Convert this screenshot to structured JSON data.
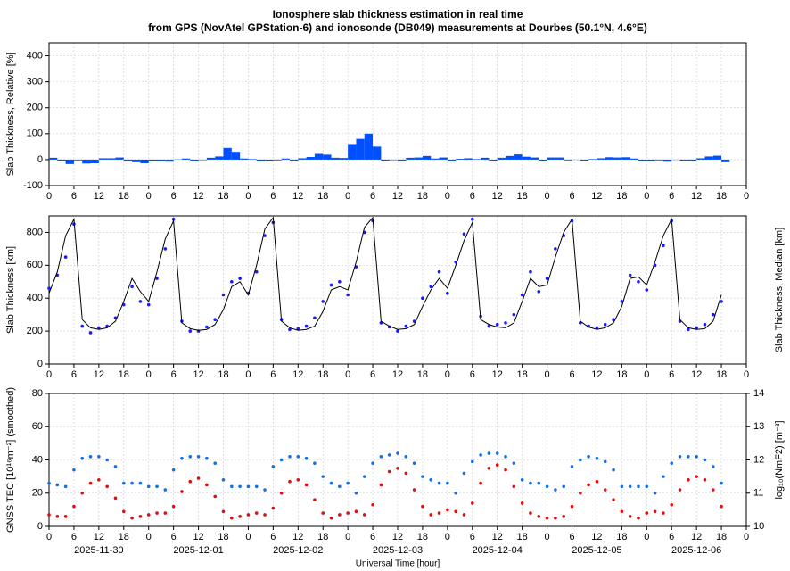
{
  "chart_data": [
    {
      "type": "bar",
      "title": "Ionosphere slab thickness estimation in real time",
      "subtitle": "from GPS (NovAtel GPStation-6) and ionosonde (DB049) measurements at Dourbes (50.1°N, 4.6°E)",
      "ylabel": "Slab Thickness, Relative [%]",
      "ylabel_color": "#1a1aff",
      "color": "#0050ff",
      "grid": true,
      "xlim": [
        0,
        168
      ],
      "ylim": [
        -100,
        450
      ],
      "yticks": [
        -100,
        0,
        100,
        200,
        300,
        400
      ],
      "xticks": [
        0,
        6,
        12,
        18,
        {
          "value": 24,
          "label": "0"
        },
        {
          "value": 30,
          "label": "6"
        },
        {
          "value": 36,
          "label": "12"
        },
        {
          "value": 42,
          "label": "18"
        },
        {
          "value": 48,
          "label": "0"
        },
        {
          "value": 54,
          "label": "6"
        },
        {
          "value": 60,
          "label": "12"
        },
        {
          "value": 66,
          "label": "18"
        },
        {
          "value": 72,
          "label": "0"
        },
        {
          "value": 78,
          "label": "6"
        },
        {
          "value": 84,
          "label": "12"
        },
        {
          "value": 90,
          "label": "18"
        },
        {
          "value": 96,
          "label": "0"
        },
        {
          "value": 102,
          "label": "6"
        },
        {
          "value": 108,
          "label": "12"
        },
        {
          "value": 114,
          "label": "18"
        },
        {
          "value": 120,
          "label": "0"
        },
        {
          "value": 126,
          "label": "6"
        },
        {
          "value": 132,
          "label": "12"
        },
        {
          "value": 138,
          "label": "18"
        },
        {
          "value": 144,
          "label": "0"
        },
        {
          "value": 150,
          "label": "6"
        },
        {
          "value": 156,
          "label": "12"
        },
        {
          "value": 162,
          "label": "18"
        },
        {
          "value": 168,
          "label": "0"
        }
      ],
      "x": [
        0,
        2,
        4,
        6,
        8,
        10,
        12,
        14,
        16,
        18,
        20,
        22,
        24,
        26,
        28,
        30,
        32,
        34,
        36,
        38,
        40,
        42,
        44,
        46,
        48,
        50,
        52,
        54,
        56,
        58,
        60,
        62,
        64,
        66,
        68,
        70,
        72,
        74,
        76,
        78,
        80,
        82,
        84,
        86,
        88,
        90,
        92,
        94,
        96,
        98,
        100,
        102,
        104,
        106,
        108,
        110,
        112,
        114,
        116,
        118,
        120,
        122,
        124,
        126,
        128,
        130,
        132,
        134,
        136,
        138,
        140,
        142,
        144,
        146,
        148,
        150,
        152,
        154,
        156,
        158,
        160,
        162
      ],
      "values": [
        7,
        -4,
        -17,
        -3,
        -15,
        -14,
        5,
        5,
        8,
        -5,
        -10,
        -14,
        -5,
        -7,
        -8,
        1,
        4,
        -7,
        -2,
        7,
        12,
        45,
        30,
        4,
        2,
        -7,
        -5,
        -3,
        4,
        -5,
        5,
        10,
        22,
        19,
        7,
        6,
        60,
        80,
        100,
        50,
        -4,
        -2,
        -5,
        7,
        8,
        14,
        4,
        8,
        -7,
        3,
        5,
        2,
        7,
        -4,
        7,
        14,
        20,
        11,
        8,
        -6,
        8,
        8,
        -3,
        -1,
        -4,
        2,
        5,
        9,
        8,
        9,
        4,
        -6,
        -6,
        -3,
        -8,
        -1,
        -4,
        -5,
        5,
        12,
        15,
        -10
      ]
    },
    {
      "type": "line",
      "grid": true,
      "xlim": [
        0,
        168
      ],
      "ylim": [
        0,
        900
      ],
      "yticks": [
        0,
        200,
        400,
        600,
        800
      ],
      "xticks": [
        0,
        6,
        12,
        18,
        {
          "value": 24,
          "label": "0"
        },
        {
          "value": 30,
          "label": "6"
        },
        {
          "value": 36,
          "label": "12"
        },
        {
          "value": 42,
          "label": "18"
        },
        {
          "value": 48,
          "label": "0"
        },
        {
          "value": 54,
          "label": "6"
        },
        {
          "value": 60,
          "label": "12"
        },
        {
          "value": 66,
          "label": "18"
        },
        {
          "value": 72,
          "label": "0"
        },
        {
          "value": 78,
          "label": "6"
        },
        {
          "value": 84,
          "label": "12"
        },
        {
          "value": 90,
          "label": "18"
        },
        {
          "value": 96,
          "label": "0"
        },
        {
          "value": 102,
          "label": "6"
        },
        {
          "value": 108,
          "label": "12"
        },
        {
          "value": 114,
          "label": "18"
        },
        {
          "value": 120,
          "label": "0"
        },
        {
          "value": 126,
          "label": "6"
        },
        {
          "value": 132,
          "label": "12"
        },
        {
          "value": 138,
          "label": "18"
        },
        {
          "value": 144,
          "label": "0"
        },
        {
          "value": 150,
          "label": "6"
        },
        {
          "value": 156,
          "label": "12"
        },
        {
          "value": 162,
          "label": "18"
        },
        {
          "value": 168,
          "label": "0"
        }
      ],
      "x": [
        0,
        2,
        4,
        6,
        8,
        10,
        12,
        14,
        16,
        18,
        20,
        22,
        24,
        26,
        28,
        30,
        32,
        34,
        36,
        38,
        40,
        42,
        44,
        46,
        48,
        50,
        52,
        54,
        56,
        58,
        60,
        62,
        64,
        66,
        68,
        70,
        72,
        74,
        76,
        78,
        80,
        82,
        84,
        86,
        88,
        90,
        92,
        94,
        96,
        98,
        100,
        102,
        104,
        106,
        108,
        110,
        112,
        114,
        116,
        118,
        120,
        122,
        124,
        126,
        128,
        130,
        132,
        134,
        136,
        138,
        140,
        142,
        144,
        146,
        148,
        150,
        152,
        154,
        156,
        158,
        160,
        162
      ],
      "series": [
        {
          "name": "Slab Thickness [km]",
          "color": "#1a1aff",
          "style": "points",
          "values": [
            460,
            540,
            650,
            850,
            230,
            190,
            220,
            230,
            280,
            360,
            470,
            380,
            360,
            520,
            700,
            880,
            260,
            200,
            200,
            225,
            270,
            420,
            500,
            520,
            430,
            560,
            780,
            860,
            270,
            210,
            215,
            230,
            280,
            380,
            480,
            500,
            420,
            590,
            800,
            870,
            250,
            225,
            200,
            230,
            260,
            400,
            470,
            560,
            430,
            620,
            790,
            880,
            290,
            230,
            240,
            250,
            300,
            420,
            560,
            440,
            520,
            700,
            780,
            870,
            250,
            230,
            220,
            240,
            270,
            380,
            540,
            500,
            450,
            600,
            720,
            870,
            260,
            210,
            220,
            240,
            300,
            380
          ]
        },
        {
          "name": "Slab Thickness, Median [km]",
          "color": "#000000",
          "style": "line",
          "values": [
            430,
            560,
            780,
            880,
            270,
            220,
            210,
            220,
            260,
            380,
            520,
            440,
            380,
            560,
            760,
            870,
            250,
            215,
            205,
            210,
            240,
            330,
            470,
            500,
            420,
            600,
            820,
            890,
            260,
            220,
            205,
            210,
            230,
            320,
            450,
            470,
            450,
            620,
            830,
            890,
            260,
            230,
            210,
            215,
            240,
            350,
            450,
            520,
            460,
            600,
            750,
            860,
            270,
            240,
            225,
            220,
            250,
            380,
            520,
            470,
            480,
            650,
            800,
            880,
            260,
            225,
            210,
            220,
            250,
            350,
            520,
            530,
            480,
            620,
            780,
            880,
            270,
            220,
            210,
            215,
            260,
            420
          ]
        }
      ]
    },
    {
      "type": "scatter",
      "grid": true,
      "xlim": [
        0,
        168
      ],
      "ylim": [
        0,
        80
      ],
      "yticks": [
        0,
        20,
        40,
        60,
        80
      ],
      "y2lim": [
        10,
        14
      ],
      "y2ticks": [
        10,
        11,
        12,
        13,
        14
      ],
      "xlabel": "Universal Time [hour]",
      "xticks": [
        0,
        6,
        12,
        18,
        {
          "value": 24,
          "label": "0"
        },
        {
          "value": 30,
          "label": "6"
        },
        {
          "value": 36,
          "label": "12"
        },
        {
          "value": 42,
          "label": "18"
        },
        {
          "value": 48,
          "label": "0"
        },
        {
          "value": 54,
          "label": "6"
        },
        {
          "value": 60,
          "label": "12"
        },
        {
          "value": 66,
          "label": "18"
        },
        {
          "value": 72,
          "label": "0"
        },
        {
          "value": 78,
          "label": "6"
        },
        {
          "value": 84,
          "label": "12"
        },
        {
          "value": 90,
          "label": "18"
        },
        {
          "value": 96,
          "label": "0"
        },
        {
          "value": 102,
          "label": "6"
        },
        {
          "value": 108,
          "label": "12"
        },
        {
          "value": 114,
          "label": "18"
        },
        {
          "value": 120,
          "label": "0"
        },
        {
          "value": 126,
          "label": "6"
        },
        {
          "value": 132,
          "label": "12"
        },
        {
          "value": 138,
          "label": "18"
        },
        {
          "value": 144,
          "label": "0"
        },
        {
          "value": 150,
          "label": "6"
        },
        {
          "value": 156,
          "label": "12"
        },
        {
          "value": 162,
          "label": "18"
        },
        {
          "value": 168,
          "label": "0"
        }
      ],
      "date_ticks": [
        {
          "value": 12,
          "label": "2025-11-30"
        },
        {
          "value": 36,
          "label": "2025-12-01"
        },
        {
          "value": 60,
          "label": "2025-12-02"
        },
        {
          "value": 84,
          "label": "2025-12-03"
        },
        {
          "value": 108,
          "label": "2025-12-04"
        },
        {
          "value": 132,
          "label": "2025-12-05"
        },
        {
          "value": 156,
          "label": "2025-12-06"
        }
      ],
      "x": [
        0,
        2,
        4,
        6,
        8,
        10,
        12,
        14,
        16,
        18,
        20,
        22,
        24,
        26,
        28,
        30,
        32,
        34,
        36,
        38,
        40,
        42,
        44,
        46,
        48,
        50,
        52,
        54,
        56,
        58,
        60,
        62,
        64,
        66,
        68,
        70,
        72,
        74,
        76,
        78,
        80,
        82,
        84,
        86,
        88,
        90,
        92,
        94,
        96,
        98,
        100,
        102,
        104,
        106,
        108,
        110,
        112,
        114,
        116,
        118,
        120,
        122,
        124,
        126,
        128,
        130,
        132,
        134,
        136,
        138,
        140,
        142,
        144,
        146,
        148,
        150,
        152,
        154,
        156,
        158,
        160,
        162
      ],
      "series": [
        {
          "name": "GNSS TEC [10¹⁶m⁻²] (smoothed)",
          "color": "#e01010",
          "style": "points",
          "values": [
            7,
            6,
            6,
            12,
            20,
            26,
            28,
            24,
            17,
            9,
            5,
            6,
            7,
            8,
            8,
            12,
            21,
            27,
            29,
            25,
            18,
            9,
            5,
            6,
            7,
            8,
            7,
            11,
            20,
            27,
            28,
            25,
            16,
            8,
            5,
            7,
            8,
            9,
            7,
            13,
            25,
            33,
            35,
            32,
            22,
            12,
            7,
            8,
            10,
            9,
            7,
            14,
            26,
            35,
            37,
            34,
            24,
            14,
            8,
            6,
            5,
            5,
            6,
            12,
            20,
            25,
            27,
            22,
            16,
            9,
            6,
            5,
            8,
            9,
            8,
            13,
            22,
            28,
            30,
            28,
            22,
            12
          ]
        },
        {
          "name": "log₁₀(NmF2) [m⁻³]",
          "color": "#1a6fe0",
          "style": "points",
          "axis": "y2",
          "values": [
            11.3,
            11.25,
            11.2,
            11.7,
            12.05,
            12.1,
            12.1,
            12.0,
            11.8,
            11.3,
            11.3,
            11.3,
            11.2,
            11.2,
            11.1,
            11.7,
            12.05,
            12.1,
            12.1,
            12.05,
            11.9,
            11.4,
            11.2,
            11.2,
            11.2,
            11.2,
            11.1,
            11.8,
            12.0,
            12.1,
            12.1,
            12.05,
            11.9,
            11.5,
            11.3,
            11.2,
            11.3,
            11.0,
            11.5,
            11.9,
            12.1,
            12.15,
            12.2,
            12.1,
            11.9,
            11.5,
            11.4,
            11.3,
            11.3,
            11.0,
            11.6,
            11.95,
            12.15,
            12.2,
            12.2,
            12.1,
            11.9,
            11.4,
            11.3,
            11.3,
            11.2,
            11.1,
            11.2,
            11.8,
            12.0,
            12.1,
            12.05,
            11.95,
            11.7,
            11.2,
            11.2,
            11.2,
            11.2,
            11.0,
            11.5,
            11.9,
            12.1,
            12.1,
            12.1,
            12.0,
            11.8,
            11.3
          ]
        }
      ]
    }
  ]
}
